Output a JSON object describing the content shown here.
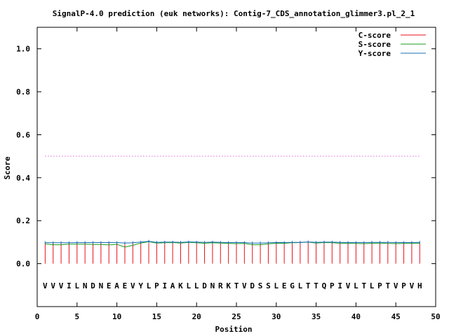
{
  "chart_data": {
    "type": "line",
    "title": "SignalP-4.0 prediction (euk networks): Contig-7_CDS_annotation_glimmer3.pl_2_1",
    "xlabel": "Position",
    "ylabel": "Score",
    "xlim": [
      0,
      50
    ],
    "ylim": [
      -0.2,
      1.1
    ],
    "x_ticks": [
      "0",
      "5",
      "10",
      "15",
      "20",
      "25",
      "30",
      "35",
      "40",
      "45",
      "50"
    ],
    "y_ticks": [
      "0.0",
      "0.2",
      "0.4",
      "0.6",
      "0.8",
      "1.0"
    ],
    "grid": false,
    "legend_position": "top-right",
    "threshold": 0.5,
    "sequence": [
      "V",
      "V",
      "V",
      "I",
      "L",
      "N",
      "D",
      "N",
      "E",
      "A",
      "E",
      "V",
      "Y",
      "L",
      "P",
      "I",
      "A",
      "K",
      "L",
      "L",
      "D",
      "N",
      "R",
      "K",
      "T",
      "V",
      "D",
      "S",
      "S",
      "L",
      "E",
      "G",
      "L",
      "T",
      "T",
      "Q",
      "P",
      "I",
      "V",
      "L",
      "T",
      "L",
      "P",
      "T",
      "V",
      "P",
      "V",
      "H"
    ],
    "x": [
      1,
      2,
      3,
      4,
      5,
      6,
      7,
      8,
      9,
      10,
      11,
      12,
      13,
      14,
      15,
      16,
      17,
      18,
      19,
      20,
      21,
      22,
      23,
      24,
      25,
      26,
      27,
      28,
      29,
      30,
      31,
      32,
      33,
      34,
      35,
      36,
      37,
      38,
      39,
      40,
      41,
      42,
      43,
      44,
      45,
      46,
      47,
      48
    ],
    "series": [
      {
        "name": "C-score",
        "color": "#e8101a",
        "style": "impulse",
        "values": [
          0.097,
          0.097,
          0.097,
          0.097,
          0.097,
          0.097,
          0.097,
          0.097,
          0.097,
          0.097,
          0.097,
          0.097,
          0.097,
          0.097,
          0.097,
          0.098,
          0.097,
          0.097,
          0.097,
          0.097,
          0.097,
          0.097,
          0.097,
          0.097,
          0.097,
          0.097,
          0.097,
          0.097,
          0.097,
          0.097,
          0.097,
          0.097,
          0.097,
          0.097,
          0.097,
          0.097,
          0.097,
          0.097,
          0.097,
          0.097,
          0.097,
          0.097,
          0.097,
          0.097,
          0.097,
          0.097,
          0.097,
          0.097
        ]
      },
      {
        "name": "S-score",
        "color": "#1a9a1a",
        "style": "line",
        "values": [
          0.092,
          0.088,
          0.088,
          0.091,
          0.091,
          0.091,
          0.089,
          0.089,
          0.087,
          0.09,
          0.077,
          0.085,
          0.096,
          0.102,
          0.096,
          0.097,
          0.098,
          0.096,
          0.099,
          0.097,
          0.095,
          0.097,
          0.096,
          0.094,
          0.093,
          0.094,
          0.088,
          0.088,
          0.092,
          0.095,
          0.095,
          0.097,
          0.098,
          0.1,
          0.096,
          0.098,
          0.097,
          0.095,
          0.094,
          0.094,
          0.093,
          0.095,
          0.096,
          0.094,
          0.093,
          0.094,
          0.094,
          0.095
        ]
      },
      {
        "name": "Y-score",
        "color": "#1a6fb5",
        "style": "line",
        "values": [
          0.098,
          0.097,
          0.097,
          0.097,
          0.098,
          0.098,
          0.098,
          0.098,
          0.098,
          0.098,
          0.096,
          0.097,
          0.1,
          0.104,
          0.099,
          0.1,
          0.1,
          0.099,
          0.101,
          0.1,
          0.099,
          0.1,
          0.099,
          0.098,
          0.098,
          0.098,
          0.096,
          0.096,
          0.097,
          0.098,
          0.098,
          0.099,
          0.099,
          0.101,
          0.099,
          0.1,
          0.1,
          0.099,
          0.098,
          0.098,
          0.098,
          0.099,
          0.099,
          0.099,
          0.098,
          0.098,
          0.098,
          0.099
        ]
      }
    ]
  }
}
